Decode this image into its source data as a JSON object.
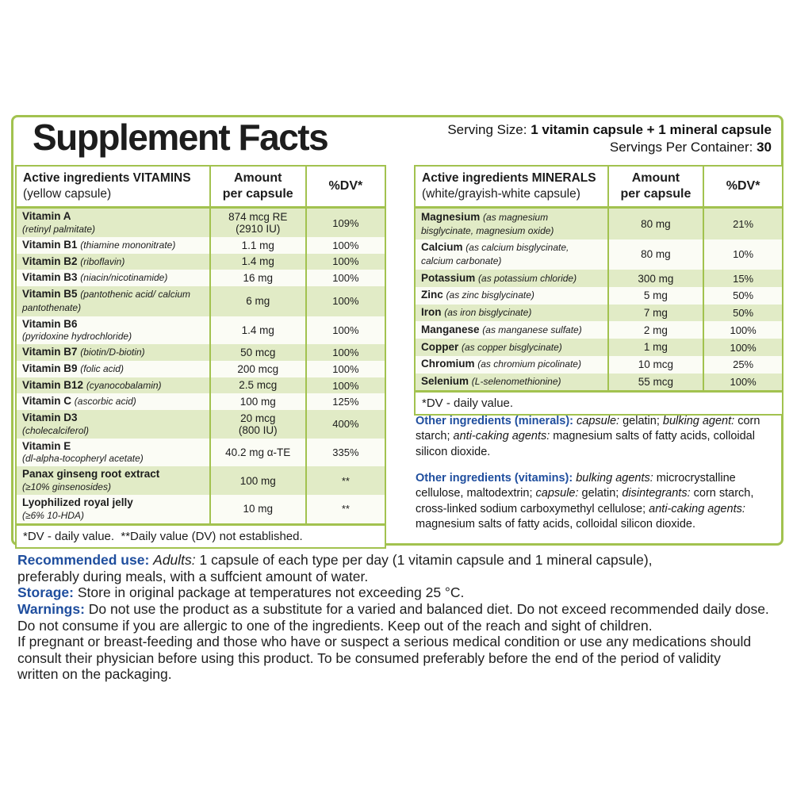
{
  "colors": {
    "green_border": "#a2c24f",
    "row_green": "#e1ebc6",
    "row_white": "#fbfcf5",
    "blue": "#1f4e9e"
  },
  "label": {
    "title": "Supplement Facts",
    "serving_size": [
      {
        "t": "Serving Size: "
      },
      {
        "t": "1 vitamin capsule + 1 mineral capsule",
        "b": true
      }
    ],
    "servings_per_container": [
      {
        "t": "Servings Per Container: "
      },
      {
        "t": "30",
        "b": true
      }
    ]
  },
  "vitamins": {
    "header": {
      "name_main": "Active ingredients VITAMINS",
      "name_sub": "(yellow capsule)",
      "amount_line1": "Amount",
      "amount_line2": "per capsule",
      "dv": "%DV*"
    },
    "rows": [
      {
        "name": "Vitamin A",
        "sub": "(retinyl palmitate)",
        "stacked": true,
        "amount": [
          "874 mcg RE",
          "(2910 IU)"
        ],
        "dv": "109%",
        "shade": "g"
      },
      {
        "name": "Vitamin B1",
        "sub": "(thiamine mononitrate)",
        "stacked": false,
        "amount": [
          "1.1 mg"
        ],
        "dv": "100%",
        "shade": "w"
      },
      {
        "name": "Vitamin B2",
        "sub": "(riboflavin)",
        "stacked": false,
        "amount": [
          "1.4 mg"
        ],
        "dv": "100%",
        "shade": "g"
      },
      {
        "name": "Vitamin B3",
        "sub": "(niacin/nicotinamide)",
        "stacked": false,
        "amount": [
          "16 mg"
        ],
        "dv": "100%",
        "shade": "w"
      },
      {
        "name": "Vitamin B5",
        "sub": "(pantothenic acid/ calcium pantothenate)",
        "stacked": false,
        "amount": [
          "6 mg"
        ],
        "dv": "100%",
        "shade": "g"
      },
      {
        "name": "Vitamin B6",
        "sub": "(pyridoxine hydrochloride)",
        "stacked": true,
        "amount": [
          "1.4 mg"
        ],
        "dv": "100%",
        "shade": "w"
      },
      {
        "name": "Vitamin B7",
        "sub": "(biotin/D-biotin)",
        "stacked": false,
        "amount": [
          "50 mcg"
        ],
        "dv": "100%",
        "shade": "g"
      },
      {
        "name": "Vitamin B9",
        "sub": "(folic acid)",
        "stacked": false,
        "amount": [
          "200 mcg"
        ],
        "dv": "100%",
        "shade": "w"
      },
      {
        "name": "Vitamin B12",
        "sub": "(cyanocobalamin)",
        "stacked": false,
        "amount": [
          "2.5 mcg"
        ],
        "dv": "100%",
        "shade": "g"
      },
      {
        "name": "Vitamin C",
        "sub": "(ascorbic acid)",
        "stacked": false,
        "amount": [
          "100 mg"
        ],
        "dv": "125%",
        "shade": "w"
      },
      {
        "name": "Vitamin D3",
        "sub": "(cholecalciferol)",
        "stacked": true,
        "amount": [
          "20 mcg",
          "(800 IU)"
        ],
        "dv": "400%",
        "shade": "g"
      },
      {
        "name": "Vitamin E",
        "sub": "(dl-alpha-tocopheryl acetate)",
        "stacked": true,
        "amount": [
          "40.2 mg α-TE"
        ],
        "dv": "335%",
        "shade": "w"
      },
      {
        "name": "Panax ginseng root extract",
        "sub": "(≥10% ginsenosides)",
        "stacked": true,
        "amount": [
          "100 mg"
        ],
        "dv": "**",
        "shade": "g"
      },
      {
        "name": "Lyophilized royal jelly",
        "sub": "(≥6% 10-HDA)",
        "stacked": true,
        "amount": [
          "10 mg"
        ],
        "dv": "**",
        "shade": "w"
      }
    ],
    "footnote": "*DV - daily value.  **Daily value (DV) not established."
  },
  "minerals": {
    "header": {
      "name_main": "Active ingredients MINERALS",
      "name_sub": "(white/grayish-white capsule)",
      "amount_line1": "Amount",
      "amount_line2": "per capsule",
      "dv": "%DV*"
    },
    "rows": [
      {
        "name": "Magnesium",
        "sub": "(as magnesium bisglycinate, magnesium oxide)",
        "stacked": false,
        "amount": [
          "80 mg"
        ],
        "dv": "21%",
        "shade": "g"
      },
      {
        "name": "Calcium",
        "sub": "(as calcium bisglycinate, calcium carbonate)",
        "stacked": false,
        "amount": [
          "80 mg"
        ],
        "dv": "10%",
        "shade": "w"
      },
      {
        "name": "Potassium",
        "sub": "(as potassium chloride)",
        "stacked": false,
        "amount": [
          "300 mg"
        ],
        "dv": "15%",
        "shade": "g"
      },
      {
        "name": "Zinc",
        "sub": "(as zinc bisglycinate)",
        "stacked": false,
        "amount": [
          "5 mg"
        ],
        "dv": "50%",
        "shade": "w"
      },
      {
        "name": "Iron",
        "sub": "(as iron bisglycinate)",
        "stacked": false,
        "amount": [
          "7 mg"
        ],
        "dv": "50%",
        "shade": "g"
      },
      {
        "name": "Manganese",
        "sub": "(as manganese sulfate)",
        "stacked": false,
        "amount": [
          "2 mg"
        ],
        "dv": "100%",
        "shade": "w"
      },
      {
        "name": "Copper",
        "sub": "(as copper bisglycinate)",
        "stacked": false,
        "amount": [
          "1 mg"
        ],
        "dv": "100%",
        "shade": "g"
      },
      {
        "name": "Chromium",
        "sub": "(as chromium picolinate)",
        "stacked": false,
        "amount": [
          "10 mcg"
        ],
        "dv": "25%",
        "shade": "w"
      },
      {
        "name": "Selenium",
        "sub": "(L-selenomethionine)",
        "stacked": false,
        "amount": [
          "55 mcg"
        ],
        "dv": "100%",
        "shade": "g"
      }
    ],
    "footnote": "*DV - daily value."
  },
  "other_ingredients": {
    "minerals": [
      {
        "t": "Other ingredients (minerals): ",
        "c": true
      },
      {
        "t": "capsule:",
        "i": true
      },
      {
        "t": " gelatin; "
      },
      {
        "t": "bulking agent:",
        "i": true
      },
      {
        "t": " corn starch; "
      },
      {
        "t": "anti-caking agents:",
        "i": true
      },
      {
        "t": " magnesium salts of fatty acids, colloidal silicon dioxide."
      }
    ],
    "vitamins": [
      {
        "t": "Other ingredients (vitamins): ",
        "c": true
      },
      {
        "t": "bulking agents:",
        "i": true
      },
      {
        "t": " microcrystalline cellulose, maltodextrin; "
      },
      {
        "t": "capsule:",
        "i": true
      },
      {
        "t": " gelatin; "
      },
      {
        "t": "disintegrants:",
        "i": true
      },
      {
        "t": " corn starch, cross-linked sodium carboxymethyl cellulose; "
      },
      {
        "t": "anti-caking agents:",
        "i": true
      },
      {
        "t": " magnesium salts of fatty acids, colloidal silicon dioxide."
      }
    ]
  },
  "bottom": {
    "lines": [
      [
        {
          "t": "Recommended use: ",
          "c": true
        },
        {
          "t": "Adults: ",
          "i": true
        },
        {
          "t": "1 capsule of each type per day (1 vitamin capsule and 1 mineral capsule),"
        }
      ],
      [
        {
          "t": "preferably during meals, with a suffcient amount of water."
        }
      ],
      [
        {
          "t": "Storage: ",
          "c": true
        },
        {
          "t": "Store in original package at temperatures not exceeding 25 °C."
        }
      ],
      [
        {
          "t": "Warnings: ",
          "c": true
        },
        {
          "t": "Do not use the product as a substitute for a varied and balanced diet. Do not exceed recommended daily dose."
        }
      ],
      [
        {
          "t": "Do not consume if you are allergic to one of the ingredients. Keep out of the reach and sight of children."
        }
      ],
      [
        {
          "t": "If pregnant or breast-feeding and those who have or suspect a serious medical condition or use any medications should"
        }
      ],
      [
        {
          "t": "consult their physician before using this product. To be consumed preferably before the end of the period of validity"
        }
      ],
      [
        {
          "t": "written on the packaging."
        }
      ]
    ]
  }
}
